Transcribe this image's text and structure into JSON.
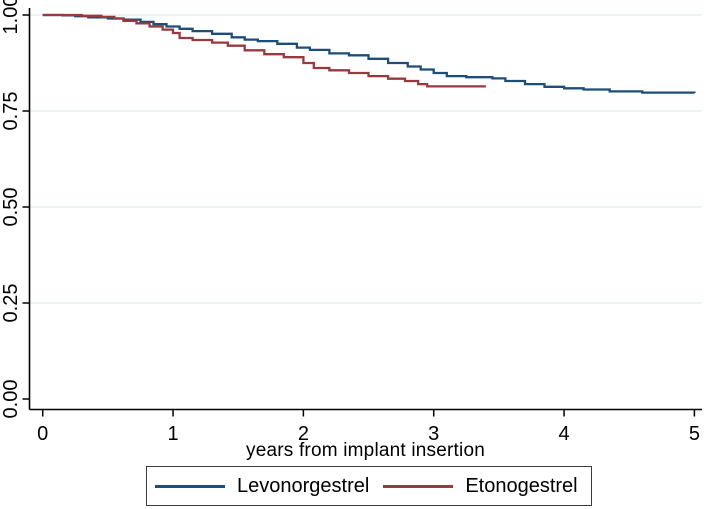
{
  "chart_data": {
    "type": "line",
    "subtype": "kaplan_meier_step",
    "title": "",
    "xlabel": "years from implant insertion",
    "ylabel": "",
    "xlim": [
      0,
      5
    ],
    "ylim": [
      0.0,
      1.0
    ],
    "xticks": [
      0,
      1,
      2,
      3,
      4,
      5
    ],
    "xtick_labels": [
      "0",
      "1",
      "2",
      "3",
      "4",
      "5"
    ],
    "yticks": [
      0,
      0.25,
      0.5,
      0.75,
      1.0
    ],
    "ytick_labels": [
      "0.00",
      "0.25",
      "0.50",
      "0.75",
      "1.00"
    ],
    "grid": "horizontal gridlines at 0.25, 0.50, 0.75, 1.00",
    "grid_color": "#e7eef1",
    "axis_color": "#000000",
    "legend_position": "bottom-center boxed",
    "series": [
      {
        "name": "Levonorgestrel",
        "color": "#1e4d77",
        "points": [
          [
            0,
            1.0
          ],
          [
            0.15,
            0.999
          ],
          [
            0.25,
            0.997
          ],
          [
            0.35,
            0.994
          ],
          [
            0.5,
            0.991
          ],
          [
            0.62,
            0.988
          ],
          [
            0.75,
            0.982
          ],
          [
            0.85,
            0.976
          ],
          [
            0.95,
            0.97
          ],
          [
            1.05,
            0.964
          ],
          [
            1.15,
            0.958
          ],
          [
            1.3,
            0.951
          ],
          [
            1.45,
            0.942
          ],
          [
            1.55,
            0.936
          ],
          [
            1.65,
            0.932
          ],
          [
            1.8,
            0.925
          ],
          [
            1.95,
            0.915
          ],
          [
            2.05,
            0.909
          ],
          [
            2.2,
            0.9
          ],
          [
            2.35,
            0.895
          ],
          [
            2.5,
            0.886
          ],
          [
            2.65,
            0.875
          ],
          [
            2.8,
            0.866
          ],
          [
            2.9,
            0.858
          ],
          [
            3.0,
            0.849
          ],
          [
            3.1,
            0.841
          ],
          [
            3.25,
            0.838
          ],
          [
            3.45,
            0.835
          ],
          [
            3.55,
            0.828
          ],
          [
            3.7,
            0.82
          ],
          [
            3.85,
            0.813
          ],
          [
            4.0,
            0.809
          ],
          [
            4.15,
            0.806
          ],
          [
            4.35,
            0.801
          ],
          [
            4.6,
            0.798
          ],
          [
            5.0,
            0.797
          ]
        ]
      },
      {
        "name": "Etonogestrel",
        "color": "#98393d",
        "points": [
          [
            0,
            1.0
          ],
          [
            0.3,
            0.998
          ],
          [
            0.45,
            0.995
          ],
          [
            0.55,
            0.991
          ],
          [
            0.62,
            0.985
          ],
          [
            0.72,
            0.978
          ],
          [
            0.82,
            0.97
          ],
          [
            0.92,
            0.962
          ],
          [
            1.0,
            0.953
          ],
          [
            1.05,
            0.94
          ],
          [
            1.15,
            0.935
          ],
          [
            1.3,
            0.928
          ],
          [
            1.42,
            0.92
          ],
          [
            1.55,
            0.908
          ],
          [
            1.7,
            0.898
          ],
          [
            1.85,
            0.89
          ],
          [
            2.0,
            0.875
          ],
          [
            2.08,
            0.862
          ],
          [
            2.2,
            0.856
          ],
          [
            2.35,
            0.849
          ],
          [
            2.5,
            0.841
          ],
          [
            2.65,
            0.834
          ],
          [
            2.78,
            0.828
          ],
          [
            2.88,
            0.82
          ],
          [
            2.95,
            0.814
          ],
          [
            3.4,
            0.814
          ]
        ]
      }
    ]
  }
}
